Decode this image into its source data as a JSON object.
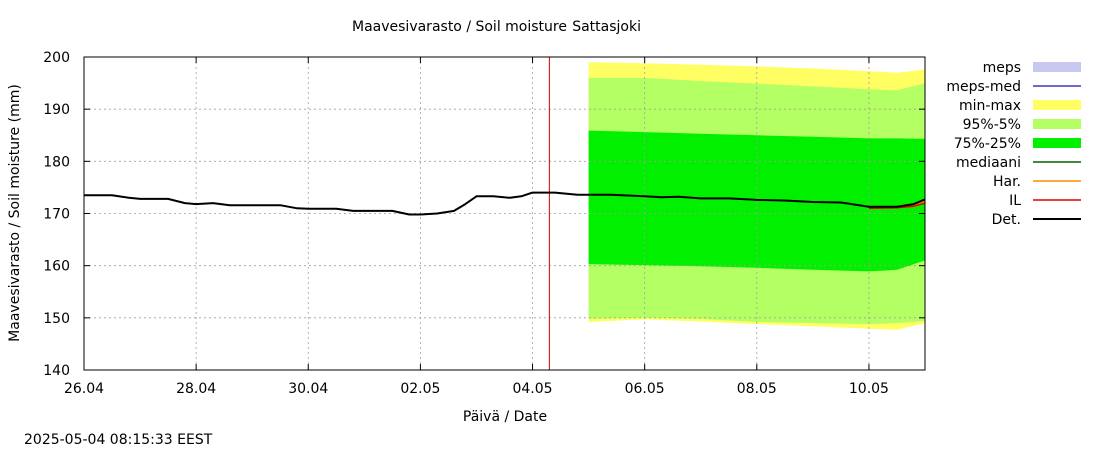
{
  "colors": {
    "meps": "#c8c8f0",
    "meps_med": "#3c3cb4",
    "minmax": "#ffff64",
    "p95_5": "#b4ff64",
    "p75_25": "#00f000",
    "median": "#006400",
    "har": "#ff8c00",
    "il": "#dc0000",
    "det": "#000000",
    "now_line": "#cc0000",
    "grid": "#a0a0a0"
  },
  "footer": {
    "timestamp": "2025-05-04 08:15:33 EEST"
  },
  "chart_data": {
    "type": "area",
    "title": "Maavesivarasto / Soil moisture",
    "station": "Sattasjoki",
    "xlabel": "Päivä / Date",
    "ylabel": "Maavesivarasto / Soil moisture (mm)",
    "ylim": [
      140,
      200
    ],
    "xlim": [
      0,
      15
    ],
    "yticks": [
      140,
      150,
      160,
      170,
      180,
      190,
      200
    ],
    "xticks": [
      {
        "day": 0,
        "label": "26.04"
      },
      {
        "day": 2,
        "label": "28.04"
      },
      {
        "day": 4,
        "label": "30.04"
      },
      {
        "day": 6,
        "label": "02.05"
      },
      {
        "day": 8,
        "label": "04.05"
      },
      {
        "day": 10,
        "label": "06.05"
      },
      {
        "day": 12,
        "label": "08.05"
      },
      {
        "day": 14,
        "label": "10.05"
      }
    ],
    "grid": true,
    "now_day": 8.3,
    "legend": [
      {
        "key": "meps",
        "label": "meps",
        "style": "box"
      },
      {
        "key": "meps_med",
        "label": "meps-med",
        "style": "line"
      },
      {
        "key": "minmax",
        "label": "min-max",
        "style": "box"
      },
      {
        "key": "p95_5",
        "label": "95%-5%",
        "style": "box"
      },
      {
        "key": "p75_25",
        "label": "75%-25%",
        "style": "box"
      },
      {
        "key": "median",
        "label": "mediaani",
        "style": "line"
      },
      {
        "key": "har",
        "label": "Har.",
        "style": "line"
      },
      {
        "key": "il",
        "label": "IL",
        "style": "line"
      },
      {
        "key": "det",
        "label": "Det.",
        "style": "line"
      }
    ],
    "series": {
      "det": {
        "x": [
          0,
          0.5,
          0.8,
          1.0,
          1.5,
          1.8,
          2.0,
          2.3,
          2.6,
          2.8,
          3.2,
          3.5,
          3.8,
          4.0,
          4.5,
          4.8,
          5.0,
          5.5,
          5.8,
          6.0,
          6.3,
          6.6,
          6.8,
          7.0,
          7.3,
          7.6,
          7.8,
          8.0,
          8.4,
          8.8,
          9.4,
          10.0,
          10.3,
          10.6,
          11.0,
          11.5,
          12.0,
          12.5,
          13.0,
          13.5,
          14.0,
          14.5,
          14.8,
          15.0
        ],
        "y": [
          173.5,
          173.5,
          173.0,
          172.8,
          172.8,
          172.0,
          171.8,
          172.0,
          171.6,
          171.6,
          171.6,
          171.6,
          171.0,
          170.9,
          170.9,
          170.5,
          170.5,
          170.5,
          169.8,
          169.8,
          170.0,
          170.5,
          171.8,
          173.3,
          173.3,
          173.0,
          173.3,
          174.0,
          174.0,
          173.6,
          173.6,
          173.3,
          173.1,
          173.2,
          172.9,
          172.9,
          172.6,
          172.5,
          172.2,
          172.1,
          171.3,
          171.3,
          171.8,
          172.7
        ]
      },
      "il": {
        "x": [
          14.0,
          14.5,
          14.8,
          15.0
        ],
        "y": [
          171.0,
          171.1,
          171.4,
          172.0
        ]
      },
      "har": {
        "x": [
          14.0,
          14.5,
          14.8,
          15.0
        ],
        "y": [
          171.1,
          171.2,
          171.6,
          172.3
        ]
      },
      "bands": {
        "x": [
          9.0,
          10.0,
          11.0,
          12.0,
          13.0,
          14.0,
          14.5,
          15.0
        ],
        "min": [
          149.2,
          149.7,
          149.3,
          148.8,
          148.4,
          147.9,
          147.7,
          149.0
        ],
        "max": [
          199.0,
          198.8,
          198.5,
          198.2,
          197.8,
          197.3,
          197.0,
          197.6
        ],
        "p5": [
          149.8,
          150.0,
          149.8,
          149.2,
          149.0,
          148.8,
          149.0,
          149.4
        ],
        "p95": [
          196.0,
          196.0,
          195.4,
          194.9,
          194.4,
          193.8,
          193.6,
          195.0
        ],
        "p25": [
          160.3,
          160.1,
          159.9,
          159.6,
          159.2,
          158.9,
          159.2,
          161.0
        ],
        "p75": [
          185.9,
          185.6,
          185.3,
          185.0,
          184.7,
          184.4,
          184.4,
          184.3
        ]
      }
    }
  }
}
